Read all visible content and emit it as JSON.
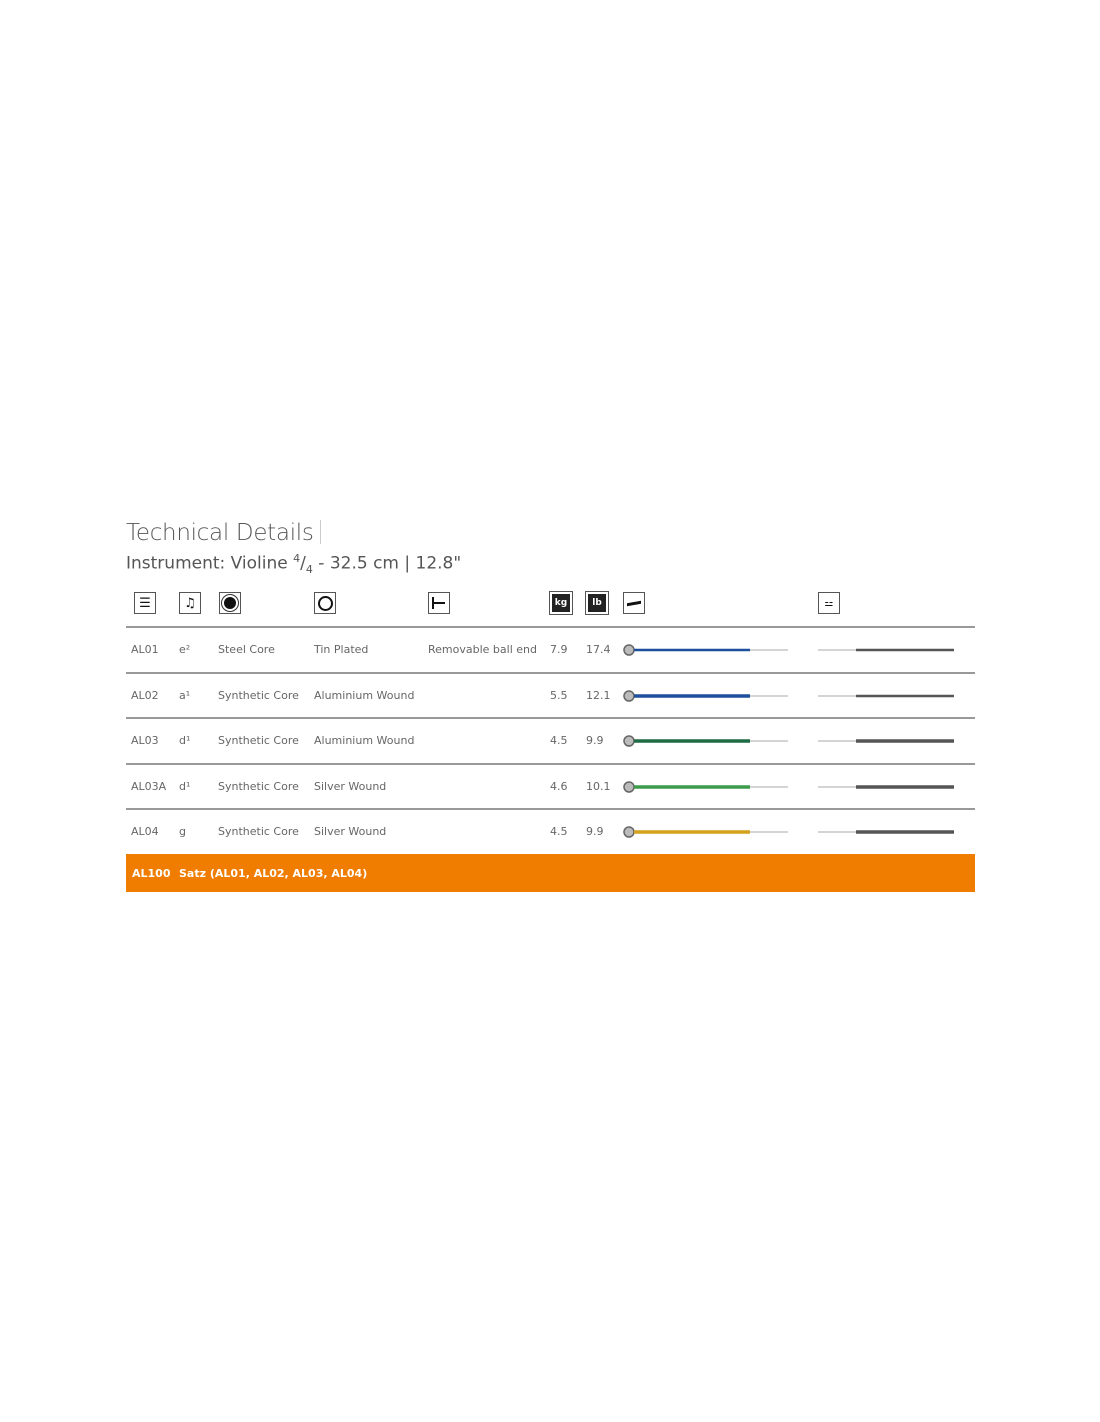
{
  "title": "Technical Details",
  "subtitle": {
    "prefix": "Instrument: Violine ",
    "frac_num": "4",
    "frac_sep": "/",
    "frac_den": "4",
    "suffix": " - 32.5 cm | 12.8\""
  },
  "header_icons": [
    "list-icon",
    "music-note-icon",
    "core-icon",
    "winding-icon",
    "ball-end-icon",
    "kg-weight-icon",
    "lb-weight-icon",
    "string-ball-end-icon",
    "violin-string-icon"
  ],
  "rows": [
    {
      "id": "AL01",
      "note": "e²",
      "core": "Steel Core",
      "winding": "Tin Plated",
      "end": "Removable ball end",
      "kg": "7.9",
      "lb": "17.4",
      "color": "#1d4f9c"
    },
    {
      "id": "AL02",
      "note": "a¹",
      "core": "Synthetic Core",
      "winding": "Aluminium Wound",
      "end": "",
      "kg": "5.5",
      "lb": "12.1",
      "color": "#1d4f9c"
    },
    {
      "id": "AL03",
      "note": "d¹",
      "core": "Synthetic Core",
      "winding": "Aluminium Wound",
      "end": "",
      "kg": "4.5",
      "lb": "9.9",
      "color": "#1f6b45"
    },
    {
      "id": "AL03A",
      "note": "d¹",
      "core": "Synthetic Core",
      "winding": "Silver Wound",
      "end": "",
      "kg": "4.6",
      "lb": "10.1",
      "color": "#3d9c4c"
    },
    {
      "id": "AL04",
      "note": "g",
      "core": "Synthetic Core",
      "winding": "Silver Wound",
      "end": "",
      "kg": "4.5",
      "lb": "9.9",
      "color": "#d4a21a"
    }
  ],
  "total": {
    "id": "AL100",
    "label": "Satz (AL01, AL02, AL03, AL04)",
    "color": "#f07c00"
  }
}
